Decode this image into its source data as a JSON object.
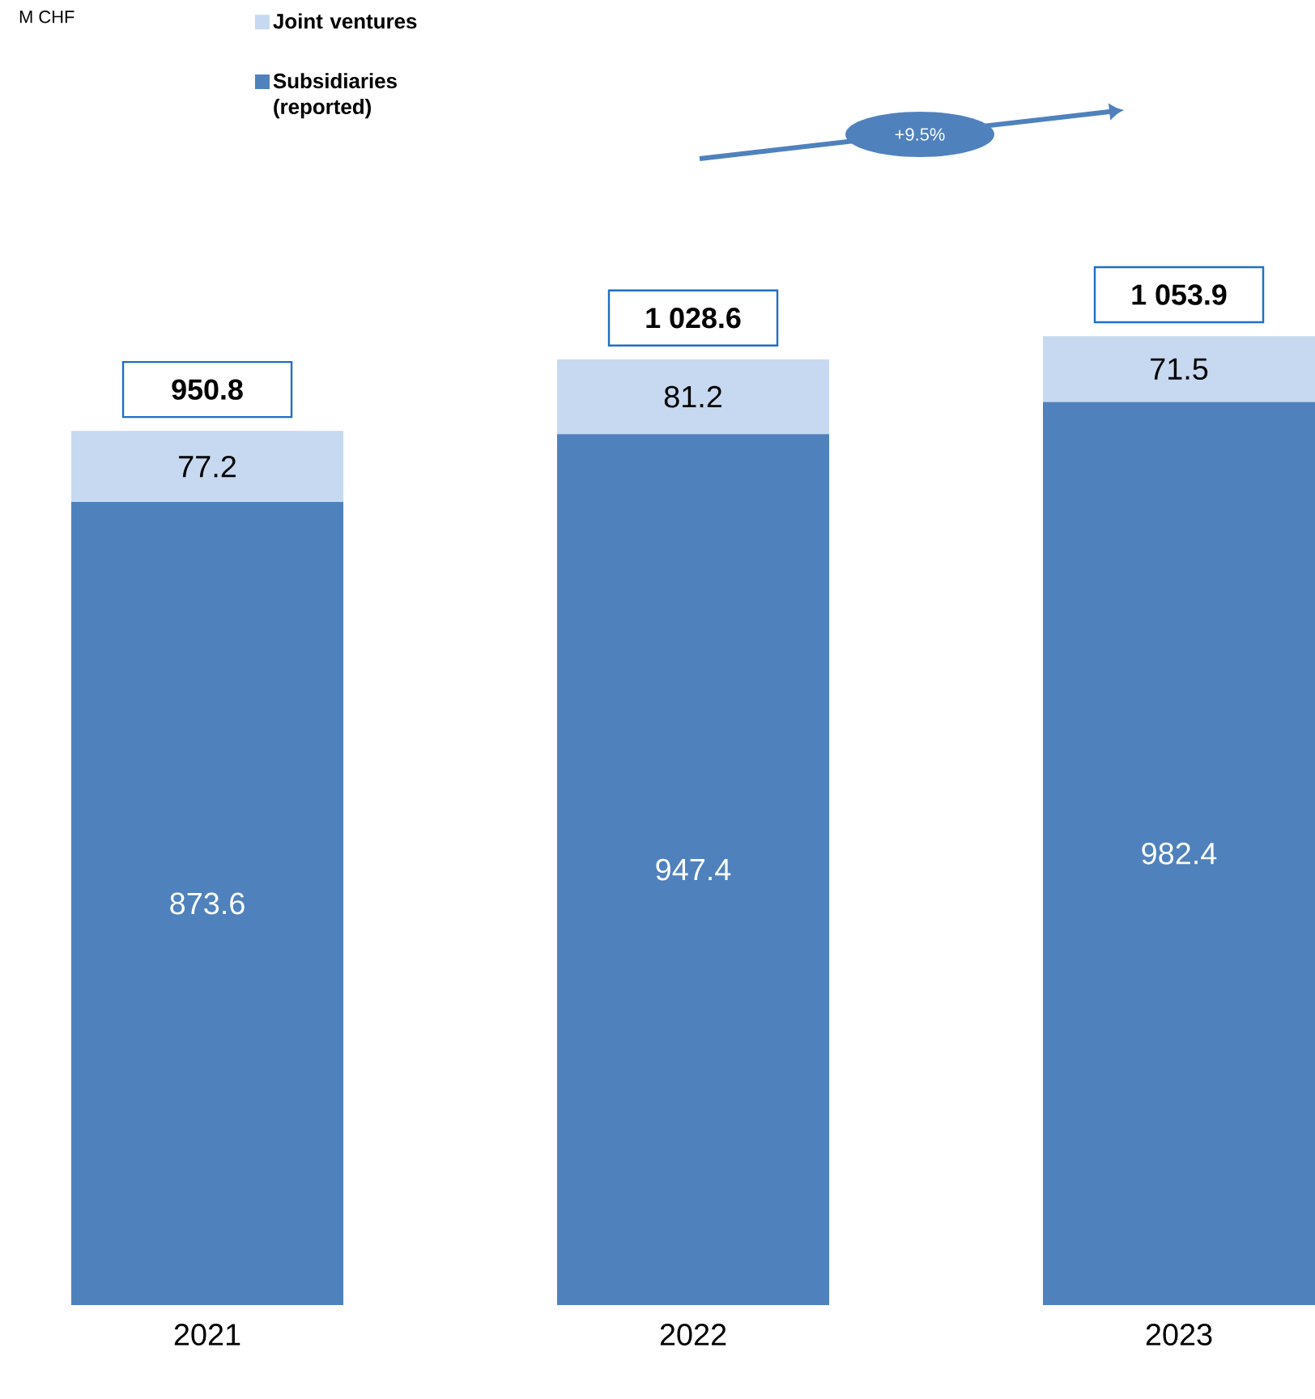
{
  "chart_data": {
    "type": "bar",
    "stacked": true,
    "categories": [
      "2021",
      "2022",
      "2023"
    ],
    "series": [
      {
        "name": "Subsidiaries (reported)",
        "color": "#4f81bd",
        "values": [
          873.6,
          947.4,
          982.4
        ],
        "value_labels": [
          "873.6",
          "947.4",
          "982.4"
        ]
      },
      {
        "name": "Joint ventures",
        "color": "#c6d9f0",
        "values": [
          77.2,
          81.2,
          71.5
        ],
        "value_labels": [
          "77.2",
          "81.2",
          "71.5"
        ]
      }
    ],
    "totals": [
      "950.8",
      "1 028.6",
      "1 053.9"
    ],
    "annotations": [
      "M CHF",
      "+9.5%"
    ],
    "tick_labels": "x",
    "legend": "top left"
  }
}
